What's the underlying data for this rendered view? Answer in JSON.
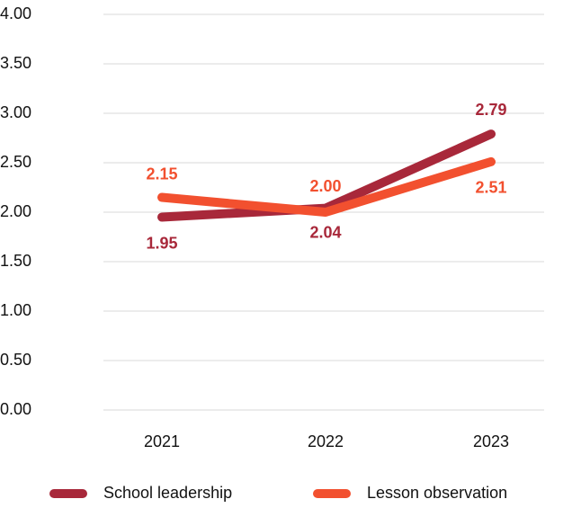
{
  "chart_data": {
    "type": "line",
    "categories": [
      "2021",
      "2022",
      "2023"
    ],
    "series": [
      {
        "name": "School leadership",
        "color": "#a8283a",
        "values": [
          1.95,
          2.04,
          2.79
        ]
      },
      {
        "name": "Lesson observation",
        "color": "#f2502f",
        "values": [
          2.15,
          2.0,
          2.51
        ],
        "value_labels": [
          "2.15",
          "2.00",
          "2.51"
        ]
      }
    ],
    "ylim": [
      0,
      4
    ],
    "yticks": [
      {
        "value": 0,
        "label": "0.00"
      },
      {
        "value": 0.5,
        "label": "0.50"
      },
      {
        "value": 1,
        "label": "1.00"
      },
      {
        "value": 1.5,
        "label": "1.50"
      },
      {
        "value": 2,
        "label": "2.00"
      },
      {
        "value": 2.5,
        "label": "2.50"
      },
      {
        "value": 3,
        "label": "3.00"
      },
      {
        "value": 3.5,
        "label": "3.50"
      },
      {
        "value": 4,
        "label": "4.00"
      }
    ],
    "grid": true,
    "legend": "bottom"
  }
}
